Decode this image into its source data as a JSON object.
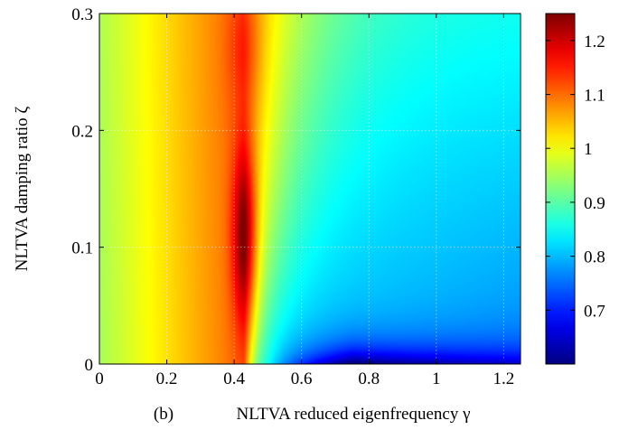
{
  "chart_data": {
    "type": "heatmap",
    "caption_prefix": "(b)",
    "xlabel": "NLTVA reduced eigenfrequency γ",
    "ylabel": "NLTVA damping ratio ζ",
    "xlim": [
      0,
      1.25
    ],
    "ylim": [
      0,
      0.3
    ],
    "x_ticks": [
      {
        "value": 0,
        "label": "0"
      },
      {
        "value": 0.2,
        "label": "0.2"
      },
      {
        "value": 0.4,
        "label": "0.4"
      },
      {
        "value": 0.6,
        "label": "0.6"
      },
      {
        "value": 0.8,
        "label": "0.8"
      },
      {
        "value": 1.0,
        "label": "1"
      },
      {
        "value": 1.2,
        "label": "1.2"
      }
    ],
    "y_ticks": [
      {
        "value": 0,
        "label": "0"
      },
      {
        "value": 0.1,
        "label": "0.1"
      },
      {
        "value": 0.2,
        "label": "0.2"
      },
      {
        "value": 0.3,
        "label": "0.3"
      }
    ],
    "grid": true,
    "colormap": "jet",
    "colorbar": {
      "range": [
        0.6,
        1.25
      ],
      "ticks": [
        {
          "value": 0.7,
          "label": "0.7"
        },
        {
          "value": 0.8,
          "label": "0.8"
        },
        {
          "value": 0.9,
          "label": "0.9"
        },
        {
          "value": 1.0,
          "label": "1"
        },
        {
          "value": 1.1,
          "label": "1.1"
        },
        {
          "value": 1.2,
          "label": "1.2"
        }
      ]
    },
    "field_samples": [
      {
        "x": 0.0,
        "y": 0.15,
        "z": 0.97
      },
      {
        "x": 0.1,
        "y": 0.15,
        "z": 1.02
      },
      {
        "x": 0.2,
        "y": 0.15,
        "z": 1.06
      },
      {
        "x": 0.3,
        "y": 0.15,
        "z": 1.09
      },
      {
        "x": 0.43,
        "y": 0.11,
        "z": 1.25
      },
      {
        "x": 0.43,
        "y": 0.27,
        "z": 1.13
      },
      {
        "x": 0.55,
        "y": 0.15,
        "z": 1.0
      },
      {
        "x": 0.6,
        "y": 0.25,
        "z": 0.95
      },
      {
        "x": 0.8,
        "y": 0.2,
        "z": 0.85
      },
      {
        "x": 1.0,
        "y": 0.2,
        "z": 0.82
      },
      {
        "x": 1.2,
        "y": 0.25,
        "z": 0.8
      },
      {
        "x": 0.8,
        "y": 0.05,
        "z": 0.72
      },
      {
        "x": 0.7,
        "y": 0.005,
        "z": 0.6
      },
      {
        "x": 1.2,
        "y": 0.02,
        "z": 0.75
      }
    ]
  }
}
